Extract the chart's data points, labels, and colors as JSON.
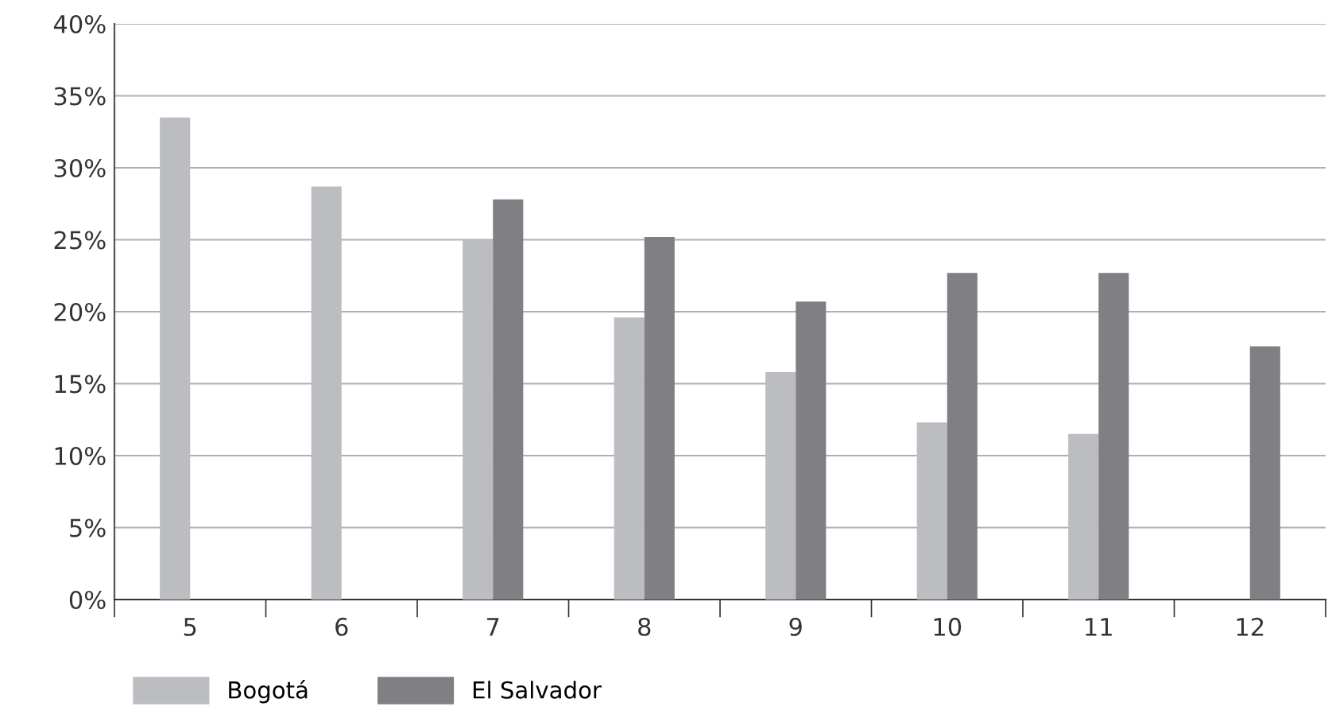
{
  "chart_data": {
    "type": "bar",
    "categories": [
      "5",
      "6",
      "7",
      "8",
      "9",
      "10",
      "11",
      "12"
    ],
    "series": [
      {
        "name": "Bogotá",
        "color": "#bcbdc0",
        "values": [
          33.5,
          28.7,
          25.0,
          19.6,
          15.8,
          12.3,
          11.5,
          null
        ]
      },
      {
        "name": "El Salvador",
        "color": "#808084",
        "values": [
          null,
          null,
          27.8,
          25.2,
          20.7,
          22.7,
          22.7,
          17.6
        ]
      }
    ],
    "ylim": [
      0,
      40
    ],
    "yticks": [
      {
        "value": 0,
        "label": "0%"
      },
      {
        "value": 5,
        "label": "5%"
      },
      {
        "value": 10,
        "label": "10%"
      },
      {
        "value": 15,
        "label": "15%"
      },
      {
        "value": 20,
        "label": "20%"
      },
      {
        "value": 25,
        "label": "25%"
      },
      {
        "value": 30,
        "label": "30%"
      },
      {
        "value": 35,
        "label": "35%"
      },
      {
        "value": 40,
        "label": "40%"
      }
    ],
    "grid": "y",
    "legend": "bottom left"
  }
}
